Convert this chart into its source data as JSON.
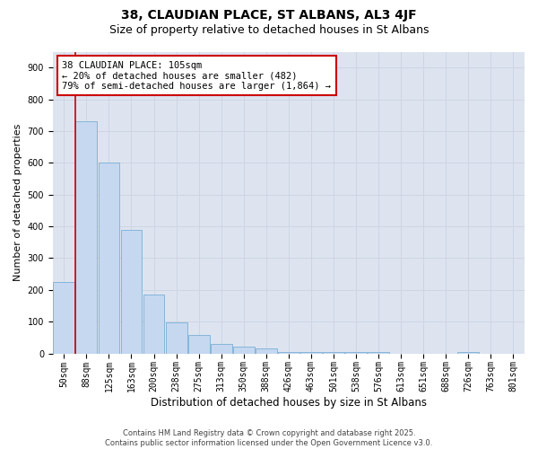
{
  "title": "38, CLAUDIAN PLACE, ST ALBANS, AL3 4JF",
  "subtitle": "Size of property relative to detached houses in St Albans",
  "xlabel": "Distribution of detached houses by size in St Albans",
  "ylabel": "Number of detached properties",
  "categories": [
    "50sqm",
    "88sqm",
    "125sqm",
    "163sqm",
    "200sqm",
    "238sqm",
    "275sqm",
    "313sqm",
    "350sqm",
    "388sqm",
    "426sqm",
    "463sqm",
    "501sqm",
    "538sqm",
    "576sqm",
    "613sqm",
    "651sqm",
    "688sqm",
    "726sqm",
    "763sqm",
    "801sqm"
  ],
  "values": [
    225,
    730,
    600,
    390,
    185,
    98,
    58,
    30,
    20,
    15,
    5,
    5,
    5,
    5,
    5,
    0,
    0,
    0,
    5,
    0,
    0
  ],
  "bar_color": "#c5d8f0",
  "bar_edge_color": "#7bafd4",
  "red_line_color": "#cc0000",
  "red_line_x": 0.5,
  "annotation_text": "38 CLAUDIAN PLACE: 105sqm\n← 20% of detached houses are smaller (482)\n79% of semi-detached houses are larger (1,864) →",
  "annotation_box_facecolor": "#ffffff",
  "annotation_box_edgecolor": "#cc0000",
  "grid_color": "#cdd5e3",
  "bg_color": "#dde4f0",
  "ylim": [
    0,
    950
  ],
  "yticks": [
    0,
    100,
    200,
    300,
    400,
    500,
    600,
    700,
    800,
    900
  ],
  "footer": "Contains HM Land Registry data © Crown copyright and database right 2025.\nContains public sector information licensed under the Open Government Licence v3.0.",
  "title_fontsize": 10,
  "subtitle_fontsize": 9,
  "tick_fontsize": 7,
  "ylabel_fontsize": 8,
  "xlabel_fontsize": 8.5,
  "annotation_fontsize": 7.5,
  "footer_fontsize": 6
}
